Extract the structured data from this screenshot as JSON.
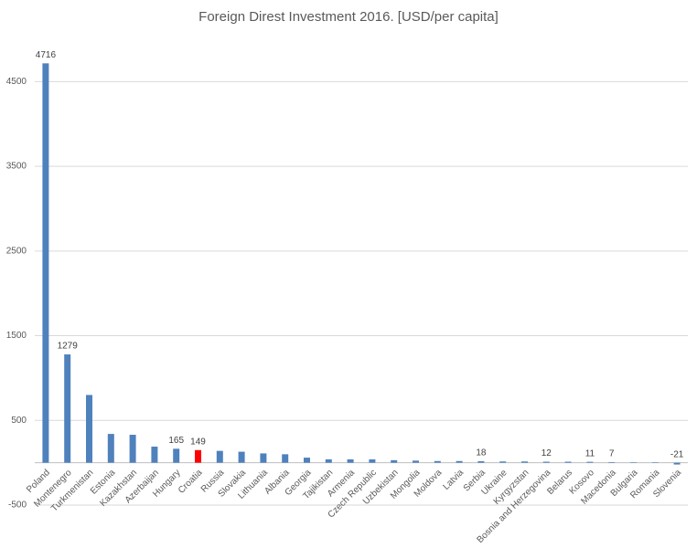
{
  "chart_data": {
    "type": "bar",
    "title": "Foreign Direst Investment 2016. [USD/per capita]",
    "categories": [
      "Poland",
      "Montenegro",
      "Turkmenistan",
      "Estonia",
      "Kazakhstan",
      "Azerbaijan",
      "Hungary",
      "Croatia",
      "Russia",
      "Slovakia",
      "Lithuania",
      "Albania",
      "Georgia",
      "Tajikistan",
      "Armenia",
      "Czech Republic",
      "Uzbekistan",
      "Mongolia",
      "Moldova",
      "Latvia",
      "Serbia",
      "Ukraine",
      "Kyrgyzstan",
      "Bosnia and Herzegovina",
      "Belarus",
      "Kosovo",
      "Macedonia",
      "Bulgaria",
      "Romania",
      "Slovenia"
    ],
    "values": [
      4716,
      1279,
      800,
      340,
      330,
      190,
      165,
      149,
      140,
      130,
      110,
      100,
      60,
      40,
      40,
      40,
      30,
      25,
      20,
      20,
      18,
      15,
      15,
      12,
      12,
      11,
      7,
      5,
      5,
      -21
    ],
    "value_labels": [
      "4716",
      "1279",
      null,
      null,
      null,
      null,
      "165",
      "149",
      null,
      null,
      null,
      null,
      null,
      null,
      null,
      null,
      null,
      null,
      null,
      null,
      "18",
      null,
      null,
      "12",
      null,
      "11",
      "7",
      null,
      null,
      "-21"
    ],
    "colors": [
      "#4f81bd",
      "#4f81bd",
      "#4f81bd",
      "#4f81bd",
      "#4f81bd",
      "#4f81bd",
      "#4f81bd",
      "#ff0000",
      "#4f81bd",
      "#4f81bd",
      "#4f81bd",
      "#4f81bd",
      "#4f81bd",
      "#4f81bd",
      "#4f81bd",
      "#4f81bd",
      "#4f81bd",
      "#4f81bd",
      "#4f81bd",
      "#4f81bd",
      "#4f81bd",
      "#4f81bd",
      "#4f81bd",
      "#4f81bd",
      "#4f81bd",
      "#4f81bd",
      "#4f81bd",
      "#4f81bd",
      "#4f81bd",
      "#4f81bd"
    ],
    "ylim": [
      -500,
      5000
    ],
    "yticks": [
      -500,
      500,
      1500,
      2500,
      3500,
      4500
    ],
    "grid": true
  }
}
